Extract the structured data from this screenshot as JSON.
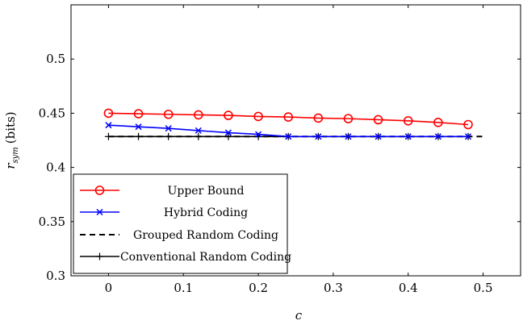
{
  "chart_data": {
    "type": "line",
    "xlabel": "c",
    "ylabel_main": "r",
    "ylabel_sub": "sym",
    "ylabel_unit": "(bits)",
    "xlim": [
      -0.05,
      0.55
    ],
    "ylim": [
      0.3,
      0.55
    ],
    "xticks": [
      0,
      0.1,
      0.2,
      0.3,
      0.4,
      0.5
    ],
    "xtick_labels": [
      "0",
      "0.1",
      "0.2",
      "0.3",
      "0.4",
      "0.5"
    ],
    "yticks": [
      0.3,
      0.35,
      0.4,
      0.45,
      0.5
    ],
    "ytick_labels": [
      "0.3",
      "0.35",
      "0.4",
      "0.45",
      "0.5"
    ],
    "grid": false,
    "legend_position": "bottom-left",
    "series": [
      {
        "name": "Upper Bound",
        "color": "#ff0000",
        "marker": "circle",
        "dash": "solid",
        "x": [
          0,
          0.04,
          0.08,
          0.12,
          0.16,
          0.2,
          0.24,
          0.28,
          0.32,
          0.36,
          0.4,
          0.44,
          0.48
        ],
        "y": [
          0.45,
          0.4495,
          0.449,
          0.4485,
          0.448,
          0.447,
          0.4465,
          0.4455,
          0.445,
          0.444,
          0.443,
          0.4415,
          0.4395
        ]
      },
      {
        "name": "Hybrid Coding",
        "color": "#0000ff",
        "marker": "x",
        "dash": "solid",
        "x": [
          0,
          0.04,
          0.08,
          0.12,
          0.16,
          0.2,
          0.24,
          0.28,
          0.32,
          0.36,
          0.4,
          0.44,
          0.48
        ],
        "y": [
          0.439,
          0.4375,
          0.436,
          0.434,
          0.432,
          0.4305,
          0.4285,
          0.4285,
          0.4285,
          0.4285,
          0.4285,
          0.4285,
          0.4285
        ]
      },
      {
        "name": "Grouped Random Coding",
        "color": "#000000",
        "marker": "none",
        "dash": "dashed",
        "x": [
          0,
          0.5
        ],
        "y": [
          0.4285,
          0.4285
        ]
      },
      {
        "name": "Conventional Random Coding",
        "color": "#000000",
        "marker": "plus",
        "dash": "solid",
        "x": [
          0,
          0.04,
          0.08,
          0.12,
          0.16,
          0.2,
          0.24,
          0.28,
          0.32,
          0.36,
          0.4,
          0.44,
          0.48
        ],
        "y": [
          0.4285,
          0.4285,
          0.4285,
          0.4285,
          0.4285,
          0.4285,
          0.4285,
          0.4285,
          0.4285,
          0.4285,
          0.4285,
          0.4285,
          0.4285
        ]
      }
    ]
  }
}
